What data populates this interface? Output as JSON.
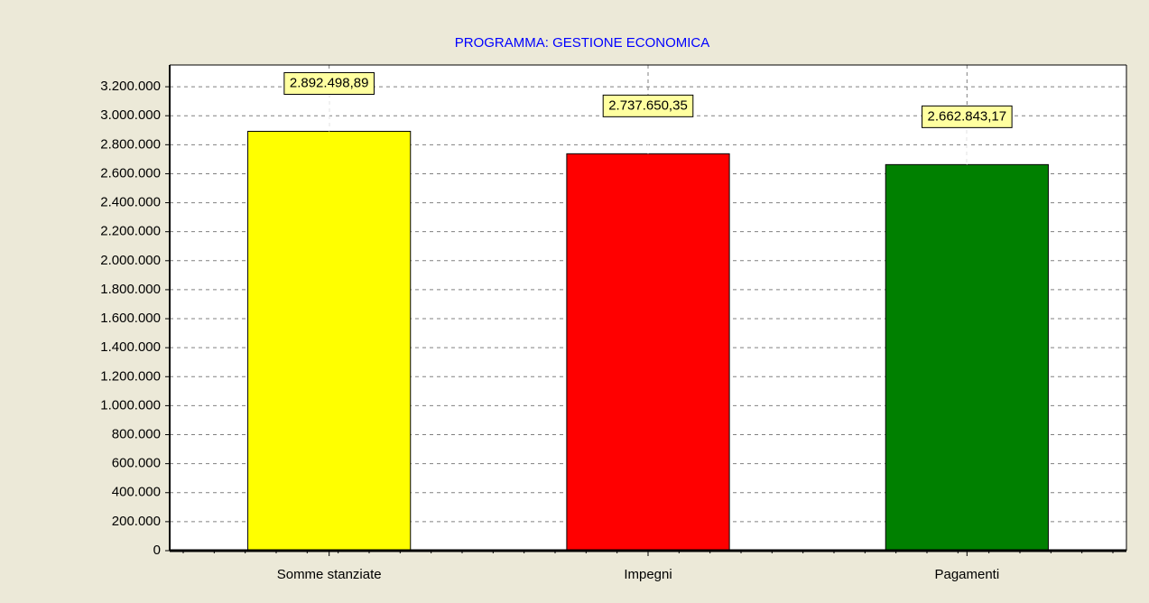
{
  "chart_data": {
    "type": "bar",
    "title": "PROGRAMMA: GESTIONE ECONOMICA",
    "categories": [
      "Somme stanziate",
      "Impegni",
      "Pagamenti"
    ],
    "values": [
      2892498.89,
      2737650.35,
      2662843.17
    ],
    "value_labels": [
      "2.892.498,89",
      "2.737.650,35",
      "2.662.843,17"
    ],
    "colors": [
      "#ffff00",
      "#ff0000",
      "#008000"
    ],
    "ylim": [
      0,
      3350000
    ],
    "yticks": [
      0,
      {
        "value": 200000,
        "label": "200.000"
      },
      {
        "value": 400000,
        "label": "400.000"
      },
      {
        "value": 600000,
        "label": "600.000"
      },
      {
        "value": 800000,
        "label": "800.000"
      },
      {
        "value": 1000000,
        "label": "1.000.000"
      },
      {
        "value": 1200000,
        "label": "1.200.000"
      },
      {
        "value": 1400000,
        "label": "1.400.000"
      },
      {
        "value": 1600000,
        "label": "1.600.000"
      },
      {
        "value": 1800000,
        "label": "1.800.000"
      },
      {
        "value": 2000000,
        "label": "2.000.000"
      },
      {
        "value": 2200000,
        "label": "2.200.000"
      },
      {
        "value": 2400000,
        "label": "2.400.000"
      },
      {
        "value": 2600000,
        "label": "2.600.000"
      },
      {
        "value": 2800000,
        "label": "2.800.000"
      },
      {
        "value": 3000000,
        "label": "3.000.000"
      },
      {
        "value": 3200000,
        "label": "3.200.000"
      }
    ],
    "grid": true
  }
}
